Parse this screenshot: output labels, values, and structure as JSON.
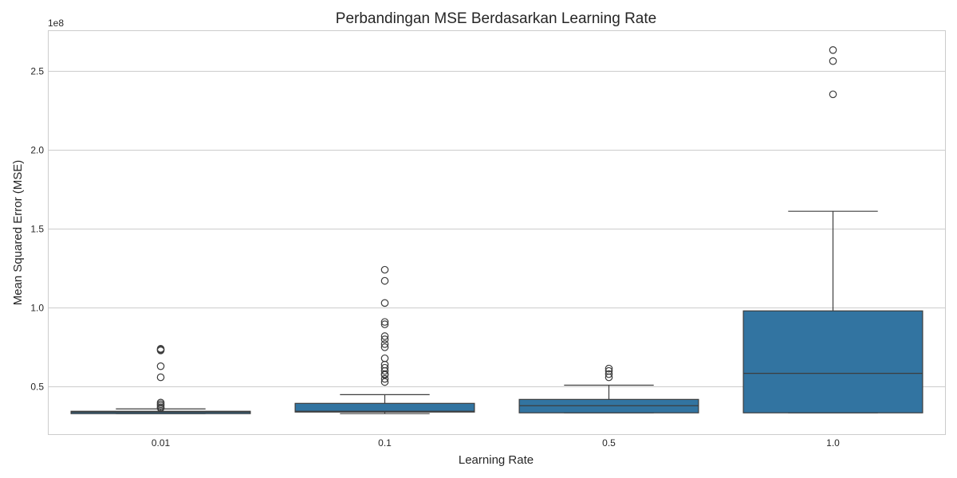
{
  "chart_data": {
    "type": "box",
    "title": "Perbandingan MSE Berdasarkan Learning Rate",
    "xlabel": "Learning Rate",
    "ylabel": "Mean Squared Error (MSE)",
    "y_scale_label": "1e8",
    "ylim": [
      0.2,
      2.75
    ],
    "y_ticks": [
      0.5,
      1.0,
      1.5,
      2.0,
      2.5
    ],
    "y_tick_labels": [
      "0.5",
      "1.0",
      "1.5",
      "2.0",
      "2.5"
    ],
    "grid": true,
    "categories": [
      "0.01",
      "0.1",
      "0.5",
      "1.0"
    ],
    "boxes": [
      {
        "category": "0.01",
        "whisker_low": 0.33,
        "q1": 0.33,
        "median": 0.34,
        "q3": 0.345,
        "whisker_high": 0.36,
        "outliers": [
          0.365,
          0.37,
          0.38,
          0.39,
          0.4,
          0.56,
          0.63,
          0.73,
          0.735,
          0.74
        ]
      },
      {
        "category": "0.1",
        "whisker_low": 0.33,
        "q1": 0.34,
        "median": 0.345,
        "q3": 0.395,
        "whisker_high": 0.45,
        "outliers": [
          0.53,
          0.55,
          0.575,
          0.58,
          0.6,
          0.62,
          0.64,
          0.68,
          0.75,
          0.77,
          0.8,
          0.82,
          0.895,
          0.91,
          1.03,
          1.17,
          1.24
        ]
      },
      {
        "category": "0.5",
        "whisker_low": 0.335,
        "q1": 0.335,
        "median": 0.38,
        "q3": 0.42,
        "whisker_high": 0.51,
        "outliers": [
          0.56,
          0.58,
          0.6,
          0.615
        ]
      },
      {
        "category": "1.0",
        "whisker_low": 0.335,
        "q1": 0.335,
        "median": 0.585,
        "q3": 0.98,
        "whisker_high": 1.61,
        "outliers": [
          2.35,
          2.56,
          2.63
        ]
      }
    ],
    "colors": {
      "box_fill": "#3274a1",
      "box_edge": "#3d3d3d",
      "grid": "#cccccc",
      "axis_frame": "#cccccc",
      "text": "#262626"
    }
  }
}
